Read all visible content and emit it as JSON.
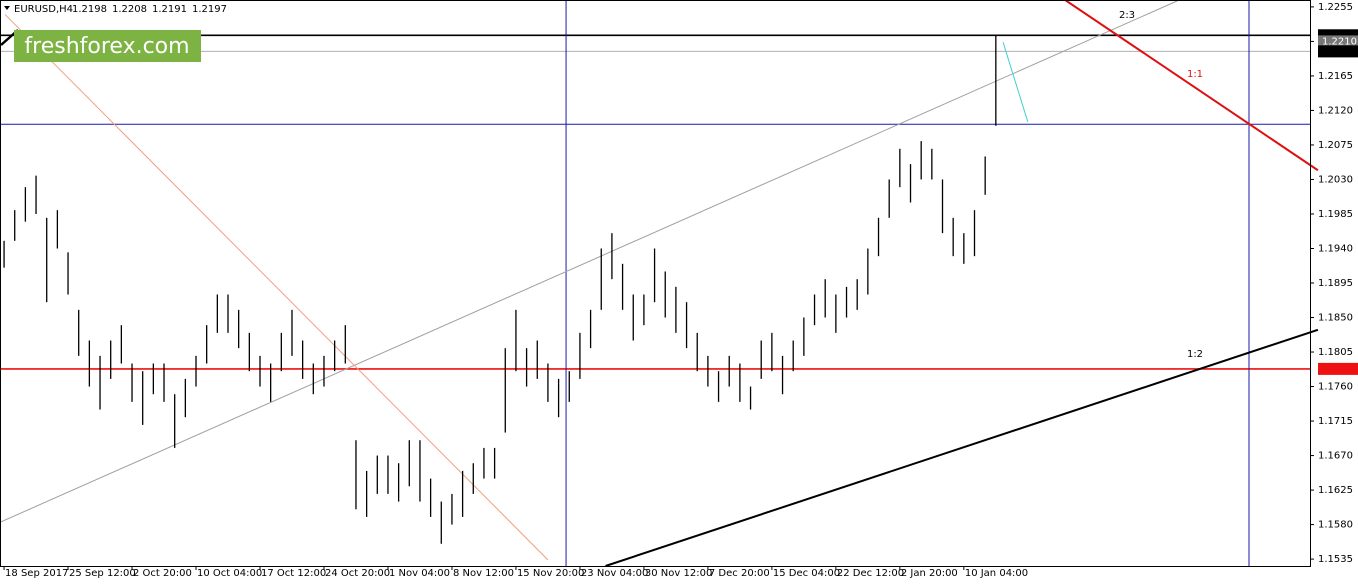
{
  "chart_data": {
    "type": "ohlc",
    "header": {
      "symbol": "EURUSD,H4",
      "ohlc": [
        1.2198,
        1.2208,
        1.2191,
        1.2197
      ]
    },
    "watermark": "freshforex.com",
    "bars": {
      "color": "#000000",
      "x": [
        0,
        5,
        10,
        15,
        20,
        25,
        30,
        35,
        40,
        45,
        50,
        55,
        60,
        65,
        70,
        75,
        80,
        85,
        90,
        95,
        100,
        105,
        110,
        115,
        120,
        125,
        130,
        135,
        140,
        145,
        150,
        155,
        160,
        165,
        170,
        175,
        180,
        185,
        190,
        195,
        200,
        205,
        210,
        215,
        220,
        225,
        230,
        235,
        240,
        245,
        250,
        255,
        260,
        265,
        270,
        275,
        280,
        285,
        290,
        295,
        300,
        305,
        310,
        315,
        320,
        325,
        330,
        335,
        340,
        345,
        350,
        355,
        360,
        365,
        370,
        375,
        380,
        385,
        390,
        395,
        400,
        405,
        410,
        415,
        420,
        425,
        430,
        435,
        440,
        445,
        450,
        455,
        460,
        465
      ],
      "high": [
        1.195,
        1.199,
        1.202,
        1.2035,
        1.198,
        1.199,
        1.1935,
        1.186,
        1.182,
        1.18,
        1.182,
        1.184,
        1.179,
        1.178,
        1.179,
        1.179,
        1.175,
        1.177,
        1.18,
        1.184,
        1.188,
        1.188,
        1.186,
        1.183,
        1.18,
        1.179,
        1.183,
        1.186,
        1.182,
        1.179,
        1.18,
        1.182,
        1.184,
        1.169,
        1.165,
        1.167,
        1.167,
        1.166,
        1.169,
        1.169,
        1.164,
        1.161,
        1.162,
        1.165,
        1.166,
        1.168,
        1.168,
        1.181,
        1.186,
        1.181,
        1.182,
        1.179,
        1.177,
        1.178,
        1.183,
        1.186,
        1.194,
        1.196,
        1.192,
        1.188,
        1.188,
        1.194,
        1.191,
        1.189,
        1.187,
        1.183,
        1.18,
        1.178,
        1.18,
        1.179,
        1.176,
        1.182,
        1.183,
        1.18,
        1.182,
        1.185,
        1.188,
        1.19,
        1.188,
        1.189,
        1.19,
        1.194,
        1.198,
        1.203,
        1.207,
        1.205,
        1.208,
        1.207,
        1.203,
        1.198,
        1.196,
        1.199,
        1.206,
        1.2218
      ],
      "low": [
        1.1915,
        1.195,
        1.1975,
        1.1985,
        1.187,
        1.194,
        1.188,
        1.18,
        1.176,
        1.173,
        1.177,
        1.179,
        1.174,
        1.171,
        1.175,
        1.174,
        1.168,
        1.172,
        1.176,
        1.179,
        1.183,
        1.183,
        1.181,
        1.178,
        1.176,
        1.174,
        1.178,
        1.18,
        1.177,
        1.175,
        1.176,
        1.178,
        1.179,
        1.16,
        1.159,
        1.162,
        1.162,
        1.161,
        1.163,
        1.161,
        1.159,
        1.1555,
        1.158,
        1.159,
        1.162,
        1.164,
        1.164,
        1.17,
        1.178,
        1.176,
        1.177,
        1.174,
        1.172,
        1.174,
        1.177,
        1.181,
        1.186,
        1.19,
        1.186,
        1.182,
        1.184,
        1.187,
        1.185,
        1.183,
        1.181,
        1.178,
        1.176,
        1.174,
        1.176,
        1.174,
        1.173,
        1.177,
        1.178,
        1.175,
        1.178,
        1.18,
        1.184,
        1.185,
        1.183,
        1.185,
        1.186,
        1.188,
        1.193,
        1.198,
        1.202,
        1.2,
        1.203,
        1.203,
        1.196,
        1.193,
        1.192,
        1.193,
        1.201,
        1.21
      ]
    },
    "xlim": [
      -1.9,
      612.3
    ],
    "xticks": [
      {
        "value": 0,
        "label": "18 Sep 2017"
      },
      {
        "value": 30,
        "label": "25 Sep 12:00"
      },
      {
        "value": 60,
        "label": "2 Oct 20:00"
      },
      {
        "value": 90,
        "label": "10 Oct 04:00"
      },
      {
        "value": 120,
        "label": "17 Oct 12:00"
      },
      {
        "value": 150,
        "label": "24 Oct 20:00"
      },
      {
        "value": 180,
        "label": "1 Nov 04:00"
      },
      {
        "value": 210,
        "label": "8 Nov 12:00"
      },
      {
        "value": 240,
        "label": "15 Nov 20:00"
      },
      {
        "value": 270,
        "label": "23 Nov 04:00"
      },
      {
        "value": 300,
        "label": "30 Nov 12:00"
      },
      {
        "value": 330,
        "label": "7 Dec 20:00"
      },
      {
        "value": 360,
        "label": "15 Dec 04:00"
      },
      {
        "value": 390,
        "label": "22 Dec 12:00"
      },
      {
        "value": 420,
        "label": "2 Jan 20:00"
      },
      {
        "value": 450,
        "label": "10 Jan 04:00"
      }
    ],
    "ylim": [
      1.1526,
      1.2264
    ],
    "yticks": [
      1.2255,
      {
        "value": 1.221,
        "label": "1.2210"
      },
      1.2165,
      {
        "value": 1.212,
        "label": "1.2120"
      },
      1.2075,
      {
        "value": 1.203,
        "label": "1.2030"
      },
      1.1985,
      {
        "value": 1.194,
        "label": "1.1940"
      },
      1.1895,
      {
        "value": 1.185,
        "label": "1.1850"
      },
      1.1805,
      {
        "value": 1.176,
        "label": "1.1760"
      },
      1.1715,
      {
        "value": 1.167,
        "label": "1.1670"
      },
      1.1625,
      {
        "value": 1.158,
        "label": "1.1580"
      },
      1.1535
    ],
    "hlines": [
      {
        "value": 1.2218,
        "color": "#000000"
      },
      {
        "value": 1.2197,
        "color": "#b0b0b0"
      },
      {
        "value": 1.2102,
        "color": "#1a1aa6"
      },
      {
        "value": 1.1783,
        "color": "#ee1111"
      }
    ],
    "vlines": [
      {
        "value": 263.5,
        "color": "#1a1aa6"
      },
      {
        "value": 583.7,
        "color": "#1a1aa6"
      }
    ],
    "trendlines": [
      {
        "x": [
          -1.9,
          551
        ],
        "y": [
          1.1583,
          1.2264
        ],
        "color": "#a0a0a0"
      },
      {
        "x": [
          0.5,
          255
        ],
        "y": [
          1.2245,
          1.1534
        ],
        "color": "#f0a080"
      },
      {
        "x": [
          282,
          616
        ],
        "y": [
          1.1526,
          1.1834
        ],
        "color": "#000000"
      },
      {
        "x": [
          497.5,
          616
        ],
        "y": [
          1.2264,
          1.2042
        ],
        "color": "#dd1111"
      },
      {
        "x": [
          468.4,
          480
        ],
        "y": [
          1.2209,
          1.2105
        ],
        "color": "#40d0d0"
      }
    ],
    "price_labels": [
      {
        "value": 1.2218,
        "color": "#000000"
      },
      {
        "value": 1.221,
        "label": "1.2210",
        "color": "#777777"
      },
      {
        "value": 1.2197,
        "color": "#000000"
      },
      {
        "value": 1.1783,
        "color": "#ee1111"
      }
    ],
    "annotations": [
      {
        "text": "2:3",
        "color": "#000000"
      },
      {
        "text": "1:1",
        "color": "#dd1111"
      },
      {
        "text": "1:2",
        "color": "#000000"
      }
    ]
  }
}
